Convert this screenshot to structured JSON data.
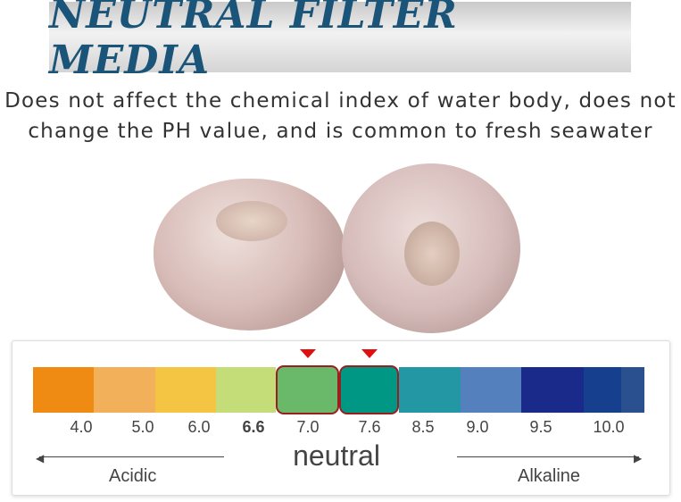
{
  "title": "NEUTRAL FILTER MEDIA",
  "description": [
    "Does not affect the chemical index of water body, does not",
    "change the PH value, and is common to fresh seawater"
  ],
  "ph_scale": {
    "colors": [
      "#ef8a13",
      "#f2b05a",
      "#f4c443",
      "#c5dd78",
      "#6ab96b",
      "#009784",
      "#2398a4",
      "#5480bd",
      "#1a2a8a",
      "#163f8e",
      "#2b5090"
    ],
    "highlight_color": "#9a1f1f",
    "marker_color": "#e01010",
    "ticks": [
      "4.0",
      "5.0",
      "6.0",
      "6.6",
      "7.0",
      "7.6",
      "8.5",
      "9.0",
      "9.5",
      "10.0"
    ],
    "bold_tick": "6.6",
    "neutral_label": "neutral",
    "acidic_label": "Acidic",
    "alkaline_label": "Alkaline"
  }
}
